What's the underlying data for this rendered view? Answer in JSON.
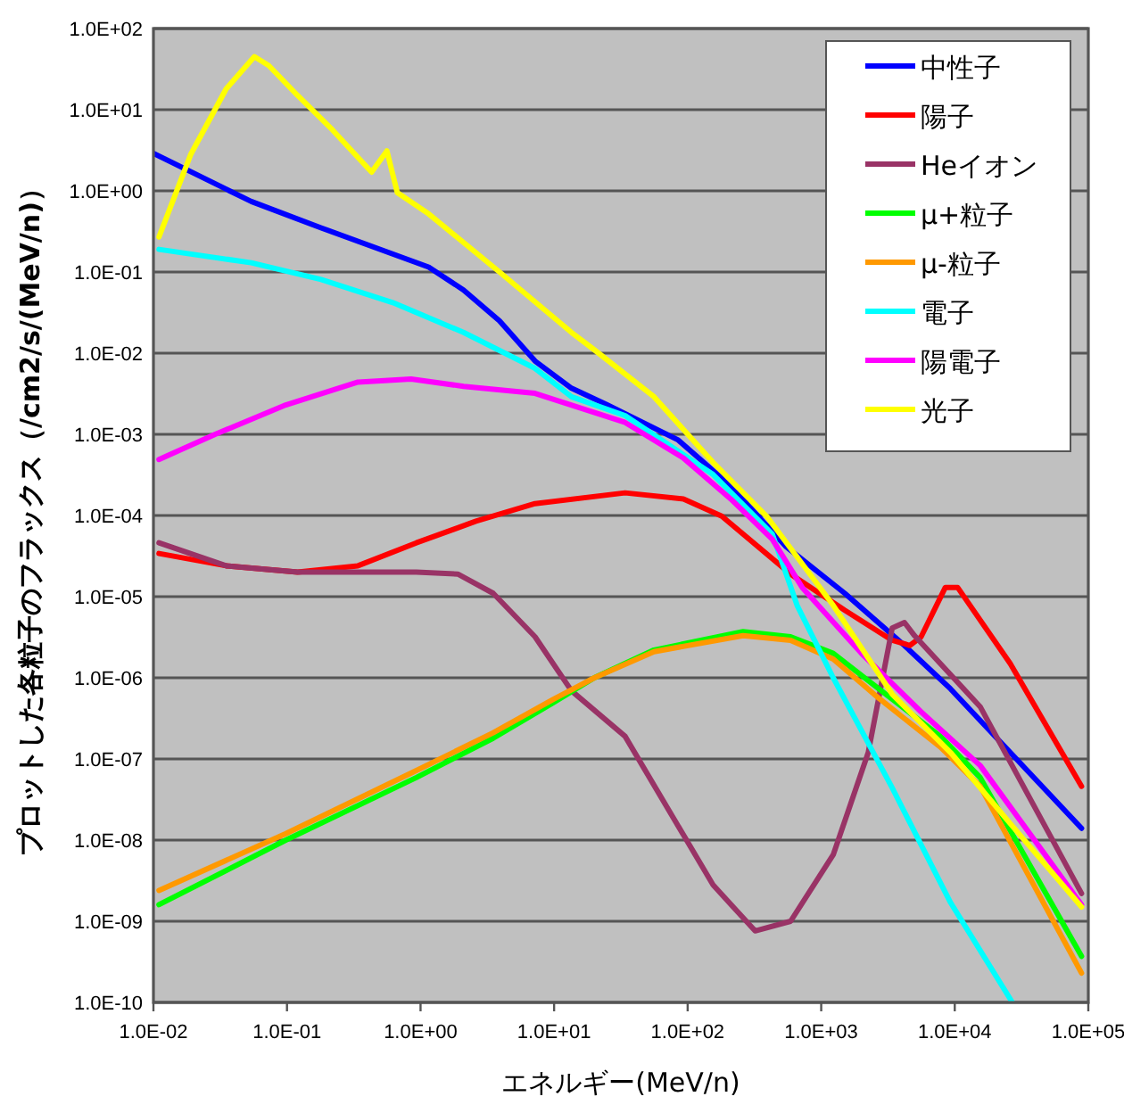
{
  "chart_data": {
    "type": "line",
    "xlabel": "エネルギー(MeV/n)",
    "ylabel": "プロットした各粒子のフラックス（/cm2/s/(MeV/n)）",
    "log": "xy",
    "grid": "y",
    "legend": "top right",
    "line_style": "solid",
    "marker": "none",
    "xlim": [
      0.01,
      100000
    ],
    "ylim": [
      1e-10,
      100
    ],
    "xticks": [
      {
        "value": 0.01,
        "label": "1.0E-02"
      },
      {
        "value": 0.1,
        "label": "1.0E-01"
      },
      {
        "value": 1,
        "label": "1.0E+00"
      },
      {
        "value": 10,
        "label": "1.0E+01"
      },
      {
        "value": 100,
        "label": "1.0E+02"
      },
      {
        "value": 1000,
        "label": "1.0E+03"
      },
      {
        "value": 10000,
        "label": "1.0E+04"
      },
      {
        "value": 100000,
        "label": "1.0E+05"
      }
    ],
    "yticks": [
      {
        "value": 1e-10,
        "label": "1.0E-10"
      },
      {
        "value": 1e-09,
        "label": "1.0E-09"
      },
      {
        "value": 1e-08,
        "label": "1.0E-08"
      },
      {
        "value": 1e-07,
        "label": "1.0E-07"
      },
      {
        "value": 1e-06,
        "label": "1.0E-06"
      },
      {
        "value": 1e-05,
        "label": "1.0E-05"
      },
      {
        "value": 0.0001,
        "label": "1.0E-04"
      },
      {
        "value": 0.001,
        "label": "1.0E-03"
      },
      {
        "value": 0.01,
        "label": "1.0E-02"
      },
      {
        "value": 0.1,
        "label": "1.0E-01"
      },
      {
        "value": 1,
        "label": "1.0E+00"
      },
      {
        "value": 10,
        "label": "1.0E+01"
      },
      {
        "value": 100,
        "label": "1.0E+02"
      }
    ],
    "series": [
      {
        "name": "中性子",
        "color": "#0000ff",
        "x": [
          0.01,
          0.054,
          0.18,
          1.15,
          2.1,
          3.9,
          7.2,
          13.5,
          25,
          85,
          210,
          540,
          1500,
          4200,
          9300,
          89000
        ],
        "values": [
          2.9,
          0.74,
          0.35,
          0.115,
          0.06,
          0.025,
          0.008,
          0.0037,
          0.0023,
          0.00085,
          0.00023,
          4.2e-05,
          1.1e-05,
          2.5e-06,
          7.3e-07,
          1.4e-08
        ]
      },
      {
        "name": "陽子",
        "color": "#ff0000",
        "x": [
          0.011,
          0.035,
          0.12,
          0.34,
          0.93,
          2.6,
          7.2,
          34,
          93,
          180,
          590,
          1500,
          3400,
          4600,
          5600,
          8500,
          10500,
          26000,
          89000
        ],
        "values": [
          3.4e-05,
          2.4e-05,
          2e-05,
          2.4e-05,
          4.6e-05,
          8.5e-05,
          0.00014,
          0.00019,
          0.00016,
          9.8e-05,
          1.9e-05,
          6.8e-06,
          2.9e-06,
          2.5e-06,
          3.2e-06,
          1.3e-05,
          1.3e-05,
          1.5e-06,
          4.6e-08
        ]
      },
      {
        "name": "Heイオン",
        "color": "#993366",
        "x": [
          0.011,
          0.035,
          0.12,
          0.93,
          1.9,
          3.5,
          7.2,
          13.5,
          34,
          155,
          320,
          590,
          1230,
          2250,
          3400,
          4200,
          5000,
          15500,
          89000
        ],
        "values": [
          4.6e-05,
          2.4e-05,
          2e-05,
          2e-05,
          1.9e-05,
          1.1e-05,
          3.2e-06,
          6.9e-07,
          1.9e-07,
          2.8e-09,
          7.6e-10,
          1e-09,
          6.6e-09,
          1.2e-07,
          4.1e-06,
          4.8e-06,
          3.3e-06,
          4.4e-07,
          2.2e-09
        ]
      },
      {
        "name": "μ+粒子",
        "color": "#00ff00",
        "x": [
          0.011,
          0.098,
          0.93,
          3.5,
          9.8,
          20,
          56,
          260,
          590,
          1230,
          2700,
          7800,
          15500,
          89000
        ],
        "values": [
          1.6e-09,
          1e-08,
          5.9e-08,
          1.8e-07,
          4.9e-07,
          1e-06,
          2.2e-06,
          3.7e-06,
          3.2e-06,
          2e-06,
          7.3e-07,
          1.9e-07,
          5.9e-08,
          3.7e-10
        ]
      },
      {
        "name": "μ-粒子",
        "color": "#ff9900",
        "x": [
          0.011,
          0.098,
          0.93,
          3.5,
          9.8,
          20,
          56,
          260,
          590,
          1230,
          2700,
          7800,
          15500,
          89000
        ],
        "values": [
          2.4e-09,
          1.2e-08,
          7.2e-08,
          2.1e-07,
          5.4e-07,
          1e-06,
          2.1e-06,
          3.3e-06,
          2.9e-06,
          1.7e-06,
          5.6e-07,
          1.4e-07,
          4.6e-08,
          2.3e-10
        ]
      },
      {
        "name": "電子",
        "color": "#00ffff",
        "x": [
          0.011,
          0.054,
          0.18,
          0.62,
          2.1,
          7.2,
          13.5,
          34,
          155,
          430,
          660,
          1230,
          3400,
          9300,
          27000
        ],
        "values": [
          0.19,
          0.13,
          0.081,
          0.042,
          0.018,
          0.0065,
          0.0029,
          0.0017,
          0.00032,
          5.9e-05,
          7.8e-06,
          1e-06,
          4.4e-08,
          1.7e-09,
          1e-10
        ]
      },
      {
        "name": "陽電子",
        "color": "#ff00ff",
        "x": [
          0.011,
          0.029,
          0.098,
          0.34,
          0.85,
          2.1,
          7.2,
          34,
          93,
          210,
          430,
          720,
          2000,
          5600,
          15500,
          89000
        ],
        "values": [
          0.00049,
          0.001,
          0.0023,
          0.0044,
          0.0048,
          0.0039,
          0.0032,
          0.0014,
          0.00051,
          0.00016,
          5.1e-05,
          1.3e-05,
          2e-06,
          3.8e-07,
          8.3e-08,
          1.6e-09
        ]
      },
      {
        "name": "光子",
        "color": "#ffff00",
        "x": [
          0.011,
          0.019,
          0.035,
          0.057,
          0.073,
          0.12,
          0.22,
          0.43,
          0.56,
          0.67,
          1.15,
          3.9,
          13.5,
          20,
          56,
          155,
          390,
          1230,
          3400,
          9300,
          26000,
          89000
        ],
        "values": [
          0.27,
          2.8,
          18,
          45,
          35,
          15,
          5.6,
          1.7,
          3.1,
          0.95,
          0.52,
          0.1,
          0.018,
          0.011,
          0.0029,
          0.00045,
          9.8e-05,
          7.8e-06,
          6.3e-07,
          1.2e-07,
          1.6e-08,
          1.5e-09
        ]
      }
    ]
  }
}
